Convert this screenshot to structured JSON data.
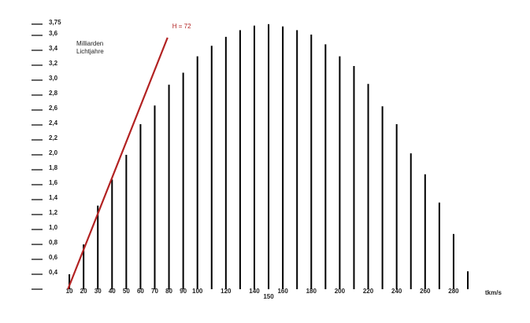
{
  "chart_data": {
    "type": "bar",
    "annotations": [
      "Milliarden",
      "Lichtjahre"
    ],
    "x_label": "tkm/s",
    "color": "#000000",
    "x": [
      10,
      20,
      30,
      40,
      50,
      60,
      70,
      80,
      90,
      100,
      110,
      120,
      130,
      140,
      150,
      160,
      170,
      180,
      190,
      200,
      210,
      220,
      230,
      240,
      250,
      260,
      270,
      280,
      290
    ],
    "values": [
      0.4,
      0.8,
      1.32,
      1.67,
      2.0,
      2.41,
      2.66,
      2.94,
      3.1,
      3.32,
      3.46,
      3.58,
      3.67,
      3.73,
      3.75,
      3.72,
      3.67,
      3.61,
      3.48,
      3.32,
      3.19,
      2.95,
      2.65,
      2.41,
      2.02,
      1.74,
      1.36,
      0.94,
      0.44
    ],
    "line": {
      "name": "H = 72",
      "color": "#b22222",
      "x": [
        9,
        79
      ],
      "values": [
        0.2,
        3.57
      ]
    },
    "xlim": [
      0,
      310
    ],
    "ylim": [
      0.2,
      3.8
    ],
    "xticks": [
      10,
      20,
      30,
      40,
      50,
      60,
      70,
      80,
      90,
      100,
      120,
      140,
      150,
      160,
      180,
      200,
      220,
      240,
      260,
      280
    ],
    "yticks": [
      {
        "value": 0.4,
        "label": "0,4"
      },
      {
        "value": 0.6,
        "label": "0,6"
      },
      {
        "value": 0.8,
        "label": "0,8"
      },
      {
        "value": 1.0,
        "label": "1,0"
      },
      {
        "value": 1.2,
        "label": "1,2"
      },
      {
        "value": 1.4,
        "label": "1,4"
      },
      {
        "value": 1.6,
        "label": "1,6"
      },
      {
        "value": 1.8,
        "label": "1,8"
      },
      {
        "value": 2.0,
        "label": "2,0"
      },
      {
        "value": 2.2,
        "label": "2,2"
      },
      {
        "value": 2.4,
        "label": "2,4"
      },
      {
        "value": 2.6,
        "label": "2,6"
      },
      {
        "value": 2.8,
        "label": "2,8"
      },
      {
        "value": 3.0,
        "label": "3,0"
      },
      {
        "value": 3.2,
        "label": "3,2"
      },
      {
        "value": 3.4,
        "label": "3,4"
      },
      {
        "value": 3.6,
        "label": "3,6"
      },
      {
        "value": 3.75,
        "label": "3,75"
      }
    ],
    "grid": false
  }
}
